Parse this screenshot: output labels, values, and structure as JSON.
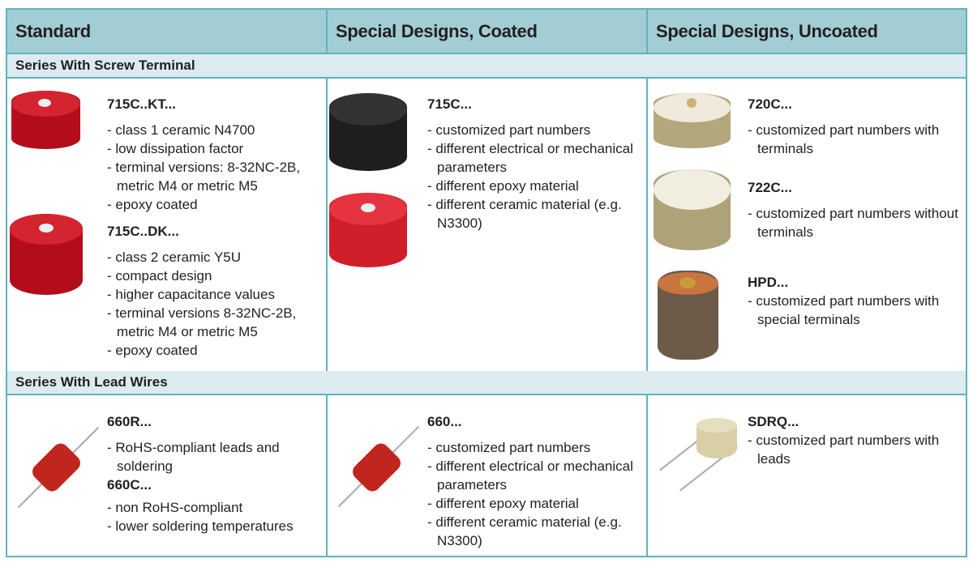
{
  "headers": [
    "Standard",
    "Special Designs, Coated",
    "Special Designs, Uncoated"
  ],
  "sections": [
    {
      "title": "Series With Screw Terminal",
      "standard": [
        {
          "name": "715C..KT...",
          "items": [
            "class 1 ceramic N4700",
            "low dissipation factor",
            "terminal versions: 8-32NC-2B, metric M4 or metric M5",
            "epoxy coated"
          ]
        },
        {
          "name": "715C..DK...",
          "items": [
            "class 2 ceramic Y5U",
            "compact design",
            "higher capacitance values",
            "terminal versions 8-32NC-2B, metric M4 or metric M5",
            "epoxy coated"
          ]
        }
      ],
      "coated": [
        {
          "name": "715C...",
          "items": [
            "customized part numbers",
            "different electrical or mechanical parameters",
            "different epoxy material",
            "different ceramic material (e.g. N3300)"
          ]
        }
      ],
      "uncoated": [
        {
          "name": "720C...",
          "items": [
            "customized part numbers with terminals"
          ]
        },
        {
          "name": "722C...",
          "items": [
            "customized part numbers without terminals"
          ]
        },
        {
          "name": "HPD...",
          "items": [
            "customized part numbers with special terminals"
          ]
        }
      ]
    },
    {
      "title": "Series With Lead Wires",
      "standard": [
        {
          "name": "660R...",
          "items": [
            "RoHS-compliant leads and soldering"
          ]
        },
        {
          "name": "660C...",
          "items": [
            "non RoHS-compliant",
            "lower soldering temperatures"
          ]
        }
      ],
      "coated": [
        {
          "name": "660...",
          "items": [
            "customized part numbers",
            "different electrical or mechanical parameters",
            "different epoxy material",
            "different ceramic material (e.g. N3300)"
          ]
        }
      ],
      "uncoated": [
        {
          "name": "SDRQ...",
          "items": [
            "customized part numbers with leads"
          ]
        }
      ]
    }
  ],
  "colors": {
    "header": "#a2cdd4",
    "subheader": "#dcebef",
    "border": "#5fb3bf",
    "red": "#c8102e",
    "black": "#222",
    "beige": "#d8cfb0"
  }
}
